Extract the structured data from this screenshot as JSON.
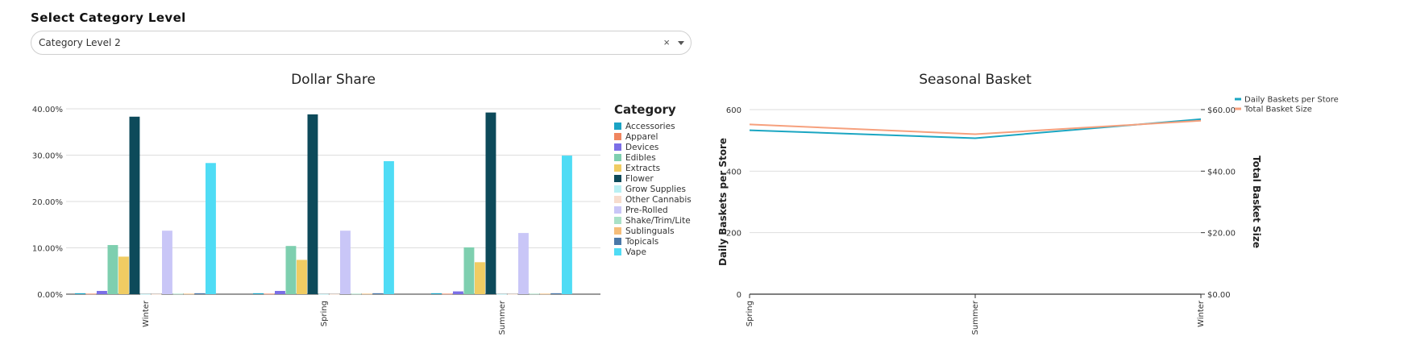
{
  "control": {
    "label": "Select Category Level",
    "selected": "Category Level 2",
    "clear_icon": "×"
  },
  "chart_data": [
    {
      "type": "bar",
      "title": "Dollar Share",
      "legend_title": "Category",
      "legend_position": "right",
      "grid": true,
      "ylim": [
        0,
        0.4
      ],
      "yticks": [
        0,
        0.1,
        0.2,
        0.3,
        0.4
      ],
      "ytick_labels": [
        "0.00%",
        "10.00%",
        "20.00%",
        "30.00%",
        "40.00%"
      ],
      "categories": [
        "Winter",
        "Spring",
        "Summer"
      ],
      "series": [
        {
          "name": "Accessories",
          "color": "#1aa3c4",
          "values": [
            0.002,
            0.002,
            0.002
          ]
        },
        {
          "name": "Apparel",
          "color": "#f0855f",
          "values": [
            0.001,
            0.001,
            0.001
          ]
        },
        {
          "name": "Devices",
          "color": "#7b6ee6",
          "values": [
            0.007,
            0.007,
            0.006
          ]
        },
        {
          "name": "Edibles",
          "color": "#7ecfaf",
          "values": [
            0.106,
            0.104,
            0.101
          ]
        },
        {
          "name": "Extracts",
          "color": "#f0cc63",
          "values": [
            0.081,
            0.074,
            0.069
          ]
        },
        {
          "name": "Flower",
          "color": "#0d4a5a",
          "values": [
            0.383,
            0.388,
            0.392
          ]
        },
        {
          "name": "Grow Supplies",
          "color": "#b8f0f4",
          "values": [
            0.0005,
            0.0005,
            0.0005
          ]
        },
        {
          "name": "Other Cannabis",
          "color": "#f7dccd",
          "values": [
            0.0005,
            0.0005,
            0.0005
          ]
        },
        {
          "name": "Pre-Rolled",
          "color": "#c9c6f7",
          "values": [
            0.137,
            0.137,
            0.132
          ]
        },
        {
          "name": "Shake/Trim/Lite",
          "color": "#a9e1c7",
          "values": [
            0.001,
            0.001,
            0.001
          ]
        },
        {
          "name": "Sublinguals",
          "color": "#f5bd7a",
          "values": [
            0.001,
            0.001,
            0.001
          ]
        },
        {
          "name": "Topicals",
          "color": "#4a78a8",
          "values": [
            0.002,
            0.002,
            0.002
          ]
        },
        {
          "name": "Vape",
          "color": "#4fdcf5",
          "values": [
            0.283,
            0.287,
            0.299
          ]
        }
      ]
    },
    {
      "type": "line",
      "title": "Seasonal Basket",
      "legend_position": "top-right",
      "grid": true,
      "categories": [
        "Spring",
        "Summer",
        "Winter"
      ],
      "ylabel": "Daily Baskets per Store",
      "ylim": [
        0,
        600
      ],
      "yticks": [
        0,
        200,
        400,
        600
      ],
      "ytick_labels": [
        "0",
        "200",
        "400",
        "600"
      ],
      "y2label": "Total Basket Size",
      "y2lim": [
        0,
        60
      ],
      "y2ticks": [
        0,
        20,
        40,
        60
      ],
      "y2tick_labels": [
        "$0.00",
        "$20.00",
        "$40.00",
        "$60.00"
      ],
      "series": [
        {
          "name": "Daily Baskets per Store",
          "axis": "left",
          "color": "#1ba6c2",
          "values": [
            533,
            507,
            569
          ]
        },
        {
          "name": "Total Basket Size",
          "axis": "right",
          "color": "#f6a07d",
          "values": [
            55.2,
            52.0,
            56.4
          ]
        }
      ]
    }
  ]
}
